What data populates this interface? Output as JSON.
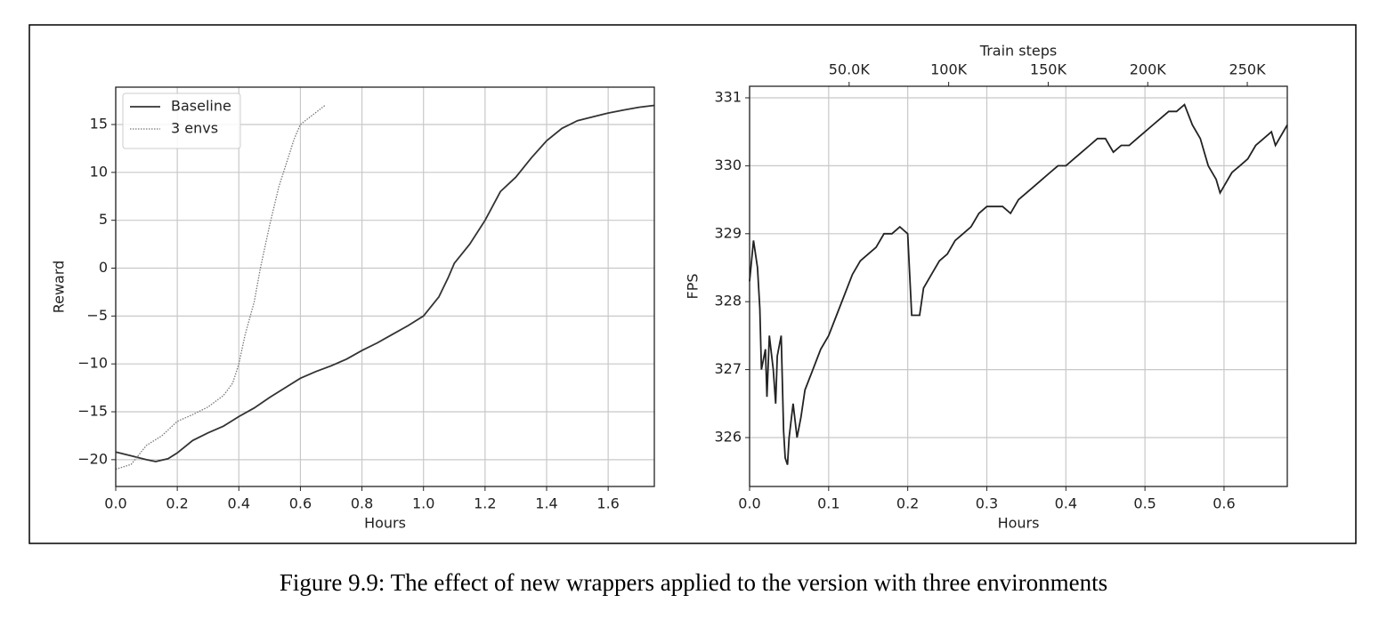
{
  "chart_data": [
    {
      "type": "line",
      "xlabel": "Hours",
      "ylabel": "Reward",
      "xlim": [
        0,
        1.75
      ],
      "ylim": [
        -22.8,
        18.9
      ],
      "xticks": [
        {
          "value": 0,
          "label": "0.0"
        },
        0.2,
        0.4,
        0.6,
        0.8,
        {
          "value": 1,
          "label": "1.0"
        },
        1.2,
        1.4,
        1.6
      ],
      "yticks": [
        {
          "value": -20,
          "label": "−20"
        },
        {
          "value": -15,
          "label": "−15"
        },
        {
          "value": -10,
          "label": "−10"
        },
        {
          "value": -5,
          "label": "−5"
        },
        0,
        5,
        10,
        15
      ],
      "grid": true,
      "legend": "upper left",
      "series": [
        {
          "name": "Baseline",
          "color": "#333333",
          "dash": "solid",
          "x": [
            0,
            0.05,
            0.1,
            0.13,
            0.17,
            0.2,
            0.25,
            0.3,
            0.35,
            0.4,
            0.45,
            0.5,
            0.55,
            0.6,
            0.65,
            0.7,
            0.75,
            0.8,
            0.85,
            0.9,
            0.95,
            1.0,
            1.05,
            1.08,
            1.1,
            1.15,
            1.2,
            1.25,
            1.3,
            1.35,
            1.4,
            1.45,
            1.5,
            1.55,
            1.6,
            1.65,
            1.7,
            1.75
          ],
          "values": [
            -19.2,
            -19.6,
            -20.0,
            -20.2,
            -19.9,
            -19.3,
            -18,
            -17.2,
            -16.5,
            -15.5,
            -14.6,
            -13.5,
            -12.5,
            -11.5,
            -10.8,
            -10.2,
            -9.5,
            -8.6,
            -7.8,
            -6.9,
            -6.0,
            -5.0,
            -3,
            -1,
            0.5,
            2.5,
            5,
            8,
            9.5,
            11.5,
            13.3,
            14.6,
            15.4,
            15.8,
            16.2,
            16.5,
            16.8,
            17.0
          ]
        },
        {
          "name": "3 envs",
          "color": "#777777",
          "dash": "dotted",
          "x": [
            0,
            0.05,
            0.1,
            0.15,
            0.2,
            0.25,
            0.3,
            0.35,
            0.38,
            0.4,
            0.42,
            0.45,
            0.47,
            0.5,
            0.53,
            0.56,
            0.58,
            0.6,
            0.64,
            0.68
          ],
          "values": [
            -21,
            -20.5,
            -18.5,
            -17.5,
            -16,
            -15.3,
            -14.5,
            -13.3,
            -12,
            -10,
            -7,
            -3.5,
            0,
            4.5,
            8.5,
            11.5,
            13.5,
            15,
            16,
            17
          ]
        }
      ]
    },
    {
      "type": "line",
      "xlabel": "Hours",
      "ylabel": "FPS",
      "x2label": "Train steps",
      "xlim": [
        0,
        0.68
      ],
      "ylim": [
        325.28,
        331.17
      ],
      "x2lim": [
        0,
        270100
      ],
      "xticks": [
        {
          "value": 0,
          "label": "0.0"
        },
        0.1,
        0.2,
        0.3,
        0.4,
        0.5,
        0.6
      ],
      "x2ticks": [
        {
          "value": 50000,
          "label": "50.0K"
        },
        {
          "value": 100000,
          "label": "100K"
        },
        {
          "value": 150000,
          "label": "150K"
        },
        {
          "value": 200000,
          "label": "200K"
        },
        {
          "value": 250000,
          "label": "250K"
        }
      ],
      "yticks": [
        326,
        327,
        328,
        329,
        330,
        331
      ],
      "grid": true,
      "series": [
        {
          "color": "#222222",
          "dash": "solid",
          "x": [
            0,
            0.005,
            0.01,
            0.013,
            0.015,
            0.02,
            0.022,
            0.025,
            0.03,
            0.033,
            0.035,
            0.04,
            0.043,
            0.045,
            0.048,
            0.05,
            0.055,
            0.06,
            0.065,
            0.07,
            0.08,
            0.09,
            0.1,
            0.11,
            0.12,
            0.13,
            0.14,
            0.15,
            0.16,
            0.17,
            0.18,
            0.19,
            0.2,
            0.205,
            0.215,
            0.22,
            0.23,
            0.24,
            0.25,
            0.26,
            0.27,
            0.28,
            0.29,
            0.3,
            0.31,
            0.32,
            0.33,
            0.34,
            0.35,
            0.36,
            0.37,
            0.38,
            0.39,
            0.4,
            0.41,
            0.42,
            0.43,
            0.44,
            0.45,
            0.46,
            0.47,
            0.48,
            0.49,
            0.5,
            0.51,
            0.52,
            0.53,
            0.54,
            0.55,
            0.56,
            0.57,
            0.58,
            0.59,
            0.595,
            0.6,
            0.61,
            0.62,
            0.63,
            0.64,
            0.65,
            0.66,
            0.665,
            0.67,
            0.68
          ],
          "values": [
            328.3,
            328.9,
            328.5,
            327.9,
            327.0,
            327.3,
            326.6,
            327.5,
            327.0,
            326.5,
            327.2,
            327.5,
            326.1,
            325.7,
            325.6,
            326.0,
            326.5,
            326.0,
            326.3,
            326.7,
            327.0,
            327.3,
            327.5,
            327.8,
            328.1,
            328.4,
            328.6,
            328.7,
            328.8,
            329.0,
            329.0,
            329.1,
            329.0,
            327.8,
            327.8,
            328.2,
            328.4,
            328.6,
            328.7,
            328.9,
            329.0,
            329.1,
            329.3,
            329.4,
            329.4,
            329.4,
            329.3,
            329.5,
            329.6,
            329.7,
            329.8,
            329.9,
            330.0,
            330.0,
            330.1,
            330.2,
            330.3,
            330.4,
            330.4,
            330.2,
            330.3,
            330.3,
            330.4,
            330.5,
            330.6,
            330.7,
            330.8,
            330.8,
            330.9,
            330.6,
            330.4,
            330.0,
            329.8,
            329.6,
            329.7,
            329.9,
            330.0,
            330.1,
            330.3,
            330.4,
            330.5,
            330.3,
            330.4,
            330.6
          ]
        }
      ]
    }
  ],
  "caption": "Figure 9.9: The effect of new wrappers applied to the version with three environments"
}
